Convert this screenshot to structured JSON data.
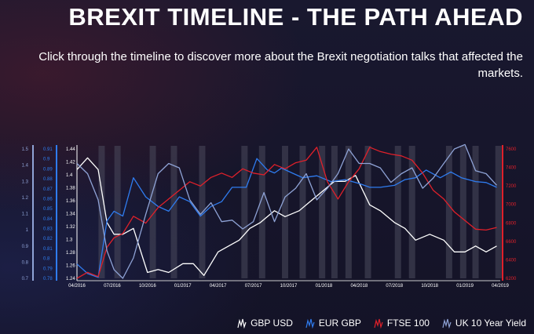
{
  "header": {
    "title": "BREXIT TIMELINE - THE PATH AHEAD",
    "subtitle": "Click through the timeline to discover more about the Brexit negotiation talks that affected the markets."
  },
  "legend": [
    {
      "label": "GBP USD",
      "color": "#ffffff",
      "icon": "line-chart-icon"
    },
    {
      "label": "EUR GBP",
      "color": "#2f7cf0",
      "icon": "line-chart-icon"
    },
    {
      "label": "FTSE 100",
      "color": "#e0202a",
      "icon": "line-chart-icon"
    },
    {
      "label": "UK 10 Year Yield",
      "color": "#8fa3d6",
      "icon": "line-chart-icon"
    }
  ],
  "chart_data": {
    "type": "line",
    "x_ticks": [
      "04/2016",
      "07/2016",
      "10/2016",
      "01/2017",
      "04/2017",
      "07/2017",
      "10/2017",
      "01/2018",
      "04/2018",
      "07/2018",
      "10/2018",
      "01/2019",
      "04/2019"
    ],
    "axes": {
      "uk10y": {
        "side": "left-outer",
        "color": "#8fa3d6",
        "ticks": [
          "1.5",
          "1.4",
          "1.3",
          "1.2",
          "1.1",
          "1",
          "0.9",
          "0.8",
          "0.7"
        ],
        "ylim": [
          0.66,
          1.55
        ]
      },
      "eurgbp": {
        "side": "left-inner",
        "color": "#2f7cf0",
        "ticks": [
          "0.91",
          "0.9",
          "0.89",
          "0.88",
          "0.87",
          "0.86",
          "0.85",
          "0.84",
          "0.83",
          "0.82",
          "0.81",
          "0.8",
          "0.79",
          "0.78"
        ],
        "ylim": [
          0.775,
          0.91
        ]
      },
      "gbpusd": {
        "side": "left",
        "color": "#ffffff",
        "ticks": [
          "1.44",
          "1.42",
          "1.4",
          "1.38",
          "1.36",
          "1.34",
          "1.32",
          "1.3",
          "1.28",
          "1.26",
          "1.24"
        ],
        "ylim": [
          1.235,
          1.455
        ]
      },
      "ftse": {
        "side": "right",
        "color": "#e0202a",
        "ticks": [
          "7600",
          "7400",
          "7200",
          "7000",
          "6800",
          "6600",
          "6400",
          "6200"
        ],
        "ylim": [
          6180,
          7680
        ]
      }
    },
    "highlight_bands": [
      0.7,
      1.15,
      2.15,
      2.75,
      3.55,
      4.75,
      5.25,
      5.9,
      6.4,
      6.95,
      7.3,
      7.7,
      8.25,
      9.1,
      9.5,
      10.55,
      10.95,
      11.3,
      11.95
    ],
    "series": [
      {
        "name": "GBP USD",
        "key": "gbpusd",
        "color": "#ffffff",
        "x": [
          0,
          0.3,
          0.6,
          0.85,
          1.05,
          1.3,
          1.6,
          2.0,
          2.3,
          2.6,
          3.0,
          3.3,
          3.6,
          4.0,
          4.3,
          4.6,
          4.9,
          5.2,
          5.6,
          5.9,
          6.3,
          6.6,
          6.9,
          7.3,
          7.6,
          7.9,
          8.3,
          8.6,
          9.0,
          9.3,
          9.6,
          10.0,
          10.4,
          10.7,
          11.0,
          11.3,
          11.6,
          11.9
        ],
        "y": [
          1.42,
          1.44,
          1.42,
          1.33,
          1.31,
          1.31,
          1.32,
          1.245,
          1.25,
          1.245,
          1.26,
          1.26,
          1.24,
          1.28,
          1.29,
          1.3,
          1.32,
          1.33,
          1.35,
          1.34,
          1.35,
          1.365,
          1.38,
          1.4,
          1.4,
          1.41,
          1.36,
          1.35,
          1.33,
          1.32,
          1.3,
          1.31,
          1.3,
          1.28,
          1.28,
          1.29,
          1.28,
          1.29
        ]
      },
      {
        "name": "EUR GBP",
        "key": "eurgbp",
        "color": "#2f7cf0",
        "x": [
          0,
          0.3,
          0.6,
          0.85,
          1.05,
          1.3,
          1.6,
          1.95,
          2.3,
          2.6,
          2.9,
          3.2,
          3.5,
          3.8,
          4.1,
          4.4,
          4.8,
          5.1,
          5.4,
          5.6,
          5.8,
          6.1,
          6.4,
          6.8,
          7.2,
          7.6,
          8.0,
          8.3,
          8.6,
          9.0,
          9.3,
          9.6,
          9.9,
          10.3,
          10.6,
          10.9,
          11.3,
          11.6,
          11.9
        ],
        "y": [
          0.79,
          0.78,
          0.776,
          0.835,
          0.845,
          0.84,
          0.88,
          0.86,
          0.85,
          0.845,
          0.86,
          0.855,
          0.84,
          0.85,
          0.855,
          0.87,
          0.87,
          0.9,
          0.888,
          0.885,
          0.89,
          0.885,
          0.88,
          0.882,
          0.876,
          0.878,
          0.874,
          0.87,
          0.87,
          0.872,
          0.878,
          0.88,
          0.888,
          0.88,
          0.886,
          0.88,
          0.876,
          0.875,
          0.87
        ]
      },
      {
        "name": "FTSE 100",
        "key": "ftse",
        "color": "#e0202a",
        "x": [
          0,
          0.3,
          0.6,
          0.85,
          1.05,
          1.3,
          1.6,
          1.95,
          2.3,
          2.6,
          2.9,
          3.2,
          3.5,
          3.8,
          4.1,
          4.4,
          4.7,
          5.0,
          5.3,
          5.6,
          5.9,
          6.2,
          6.5,
          6.8,
          7.1,
          7.4,
          7.7,
          8.0,
          8.3,
          8.6,
          8.9,
          9.2,
          9.5,
          9.8,
          10.1,
          10.4,
          10.7,
          11.0,
          11.3,
          11.6,
          11.9
        ],
        "y": [
          6150,
          6250,
          6200,
          6540,
          6650,
          6700,
          6900,
          6820,
          7000,
          7100,
          7200,
          7300,
          7250,
          7350,
          7400,
          7350,
          7450,
          7400,
          7380,
          7500,
          7450,
          7520,
          7550,
          7700,
          7300,
          7100,
          7300,
          7450,
          7700,
          7650,
          7620,
          7600,
          7550,
          7400,
          7200,
          7100,
          6950,
          6850,
          6750,
          6740,
          6770
        ]
      },
      {
        "name": "UK 10 Year Yield",
        "key": "uk10y",
        "color": "#8fa3d6",
        "x": [
          0,
          0.3,
          0.6,
          0.85,
          1.05,
          1.3,
          1.6,
          1.95,
          2.3,
          2.6,
          2.9,
          3.2,
          3.5,
          3.8,
          4.1,
          4.4,
          4.7,
          5.0,
          5.3,
          5.6,
          5.9,
          6.2,
          6.5,
          6.8,
          7.1,
          7.4,
          7.7,
          8.0,
          8.3,
          8.6,
          8.9,
          9.2,
          9.5,
          9.8,
          10.1,
          10.4,
          10.7,
          11.0,
          11.3,
          11.6,
          11.9
        ],
        "y": [
          1.45,
          1.38,
          1.2,
          0.85,
          0.72,
          0.66,
          0.8,
          1.1,
          1.38,
          1.45,
          1.42,
          1.2,
          1.1,
          1.18,
          1.05,
          1.06,
          1.0,
          1.05,
          1.25,
          1.05,
          1.22,
          1.28,
          1.38,
          1.2,
          1.28,
          1.38,
          1.55,
          1.45,
          1.45,
          1.42,
          1.32,
          1.38,
          1.42,
          1.28,
          1.35,
          1.45,
          1.55,
          1.58,
          1.4,
          1.38,
          1.3
        ]
      }
    ]
  }
}
